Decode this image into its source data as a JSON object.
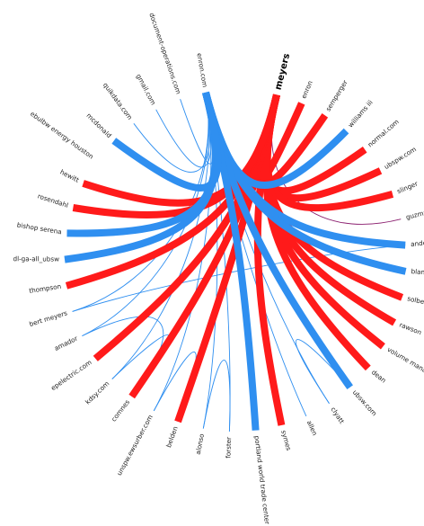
{
  "colors": {
    "red": "#ff1a1a",
    "blue": "#2f8ff0",
    "purple": "#8b1f6f",
    "label": "#222222"
  },
  "focus_node": "meyers",
  "nodes": [
    {
      "label": "meyers",
      "group": "red"
    },
    {
      "label": "enron",
      "group": "red"
    },
    {
      "label": "semperger",
      "group": "red"
    },
    {
      "label": "williams iii",
      "group": "blue"
    },
    {
      "label": "normal.com",
      "group": "red"
    },
    {
      "label": "ubspw.com",
      "group": "red"
    },
    {
      "label": "slinger",
      "group": "red"
    },
    {
      "label": "guzman",
      "group": "red"
    },
    {
      "label": "anderson",
      "group": "blue"
    },
    {
      "label": "bland",
      "group": "blue"
    },
    {
      "label": "solberg",
      "group": "red"
    },
    {
      "label": "rawson",
      "group": "red"
    },
    {
      "label": "volume management",
      "group": "red"
    },
    {
      "label": "dean",
      "group": "red"
    },
    {
      "label": "ubsw.com",
      "group": "blue"
    },
    {
      "label": "clyatt",
      "group": "blue"
    },
    {
      "label": "allen",
      "group": "blue"
    },
    {
      "label": "symes",
      "group": "red"
    },
    {
      "label": "portland world trade center",
      "group": "blue"
    },
    {
      "label": "forster",
      "group": "blue"
    },
    {
      "label": "alonso",
      "group": "blue"
    },
    {
      "label": "belden",
      "group": "red"
    },
    {
      "label": "unspw.ewsurber.com",
      "group": "blue"
    },
    {
      "label": "comnes",
      "group": "red"
    },
    {
      "label": "kdsy.com",
      "group": "blue"
    },
    {
      "label": "epelectric.com",
      "group": "red"
    },
    {
      "label": "amador",
      "group": "blue"
    },
    {
      "label": "bert meyers",
      "group": "blue"
    },
    {
      "label": "thompson",
      "group": "red"
    },
    {
      "label": "dl-ga-all_ubsw",
      "group": "blue"
    },
    {
      "label": "bishop serena",
      "group": "blue"
    },
    {
      "label": "rosendahl",
      "group": "red"
    },
    {
      "label": "hewitt",
      "group": "red"
    },
    {
      "label": "ebulbw energy houston",
      "group": "red"
    },
    {
      "label": "mcdonald",
      "group": "blue"
    },
    {
      "label": "quikdata.com",
      "group": "blue"
    },
    {
      "label": "gmail.com",
      "group": "blue"
    },
    {
      "label": "document-operations.com",
      "group": "blue"
    },
    {
      "label": "enron.com",
      "group": "blue"
    }
  ],
  "edges": [
    {
      "from": "meyers",
      "to": "enron",
      "color": "red",
      "weight": 1
    },
    {
      "from": "meyers",
      "to": "semperger",
      "color": "red",
      "weight": 1
    },
    {
      "from": "meyers",
      "to": "normal.com",
      "color": "red",
      "weight": 1
    },
    {
      "from": "meyers",
      "to": "ubspw.com",
      "color": "red",
      "weight": 1
    },
    {
      "from": "meyers",
      "to": "slinger",
      "color": "red",
      "weight": 1
    },
    {
      "from": "meyers",
      "to": "guzman",
      "color": "purple",
      "weight": 0.1
    },
    {
      "from": "meyers",
      "to": "solberg",
      "color": "red",
      "weight": 1
    },
    {
      "from": "meyers",
      "to": "rawson",
      "color": "red",
      "weight": 1
    },
    {
      "from": "meyers",
      "to": "volume management",
      "color": "red",
      "weight": 1
    },
    {
      "from": "meyers",
      "to": "dean",
      "color": "red",
      "weight": 1
    },
    {
      "from": "meyers",
      "to": "symes",
      "color": "red",
      "weight": 1
    },
    {
      "from": "meyers",
      "to": "belden",
      "color": "red",
      "weight": 1
    },
    {
      "from": "meyers",
      "to": "comnes",
      "color": "red",
      "weight": 1
    },
    {
      "from": "meyers",
      "to": "epelectric.com",
      "color": "red",
      "weight": 1
    },
    {
      "from": "meyers",
      "to": "thompson",
      "color": "red",
      "weight": 1
    },
    {
      "from": "meyers",
      "to": "rosendahl",
      "color": "red",
      "weight": 1
    },
    {
      "from": "meyers",
      "to": "hewitt",
      "color": "red",
      "weight": 1
    },
    {
      "from": "enron.com",
      "to": "williams iii",
      "color": "blue",
      "weight": 1
    },
    {
      "from": "enron.com",
      "to": "anderson",
      "color": "blue",
      "weight": 1
    },
    {
      "from": "enron.com",
      "to": "bland",
      "color": "blue",
      "weight": 1
    },
    {
      "from": "enron.com",
      "to": "ubsw.com",
      "color": "blue",
      "weight": 1
    },
    {
      "from": "enron.com",
      "to": "portland world trade center",
      "color": "blue",
      "weight": 1
    },
    {
      "from": "enron.com",
      "to": "dl-ga-all_ubsw",
      "color": "blue",
      "weight": 1
    },
    {
      "from": "enron.com",
      "to": "bishop serena",
      "color": "blue",
      "weight": 1
    },
    {
      "from": "enron.com",
      "to": "mcdonald",
      "color": "blue",
      "weight": 1
    },
    {
      "from": "enron.com",
      "to": "quikdata.com",
      "color": "blue",
      "weight": 0.1
    },
    {
      "from": "enron.com",
      "to": "gmail.com",
      "color": "blue",
      "weight": 0.1
    },
    {
      "from": "enron.com",
      "to": "document-operations.com",
      "color": "blue",
      "weight": 0.1
    },
    {
      "from": "enron.com",
      "to": "bert meyers",
      "color": "blue",
      "weight": 0.1
    },
    {
      "from": "enron.com",
      "to": "amador",
      "color": "blue",
      "weight": 0.1
    },
    {
      "from": "enron.com",
      "to": "clyatt",
      "color": "blue",
      "weight": 0.1
    },
    {
      "from": "enron.com",
      "to": "allen",
      "color": "blue",
      "weight": 0.1
    },
    {
      "from": "enron.com",
      "to": "forster",
      "color": "blue",
      "weight": 0.1
    },
    {
      "from": "enron.com",
      "to": "alonso",
      "color": "blue",
      "weight": 0.1
    },
    {
      "from": "enron.com",
      "to": "kdsy.com",
      "color": "blue",
      "weight": 0.1
    },
    {
      "from": "enron.com",
      "to": "unspw.ewsurber.com",
      "color": "blue",
      "weight": 0.1
    },
    {
      "from": "amador",
      "to": "comnes",
      "color": "blue",
      "weight": 0.1
    },
    {
      "from": "kdsy.com",
      "to": "comnes",
      "color": "blue",
      "weight": 0.1
    },
    {
      "from": "bert meyers",
      "to": "anderson",
      "color": "blue",
      "weight": 0.1
    },
    {
      "from": "unspw.ewsurber.com",
      "to": "belden",
      "color": "blue",
      "weight": 0.1
    },
    {
      "from": "forster",
      "to": "alonso",
      "color": "blue",
      "weight": 0.1
    },
    {
      "from": "ubsw.com",
      "to": "clyatt",
      "color": "blue",
      "weight": 0.1
    }
  ]
}
